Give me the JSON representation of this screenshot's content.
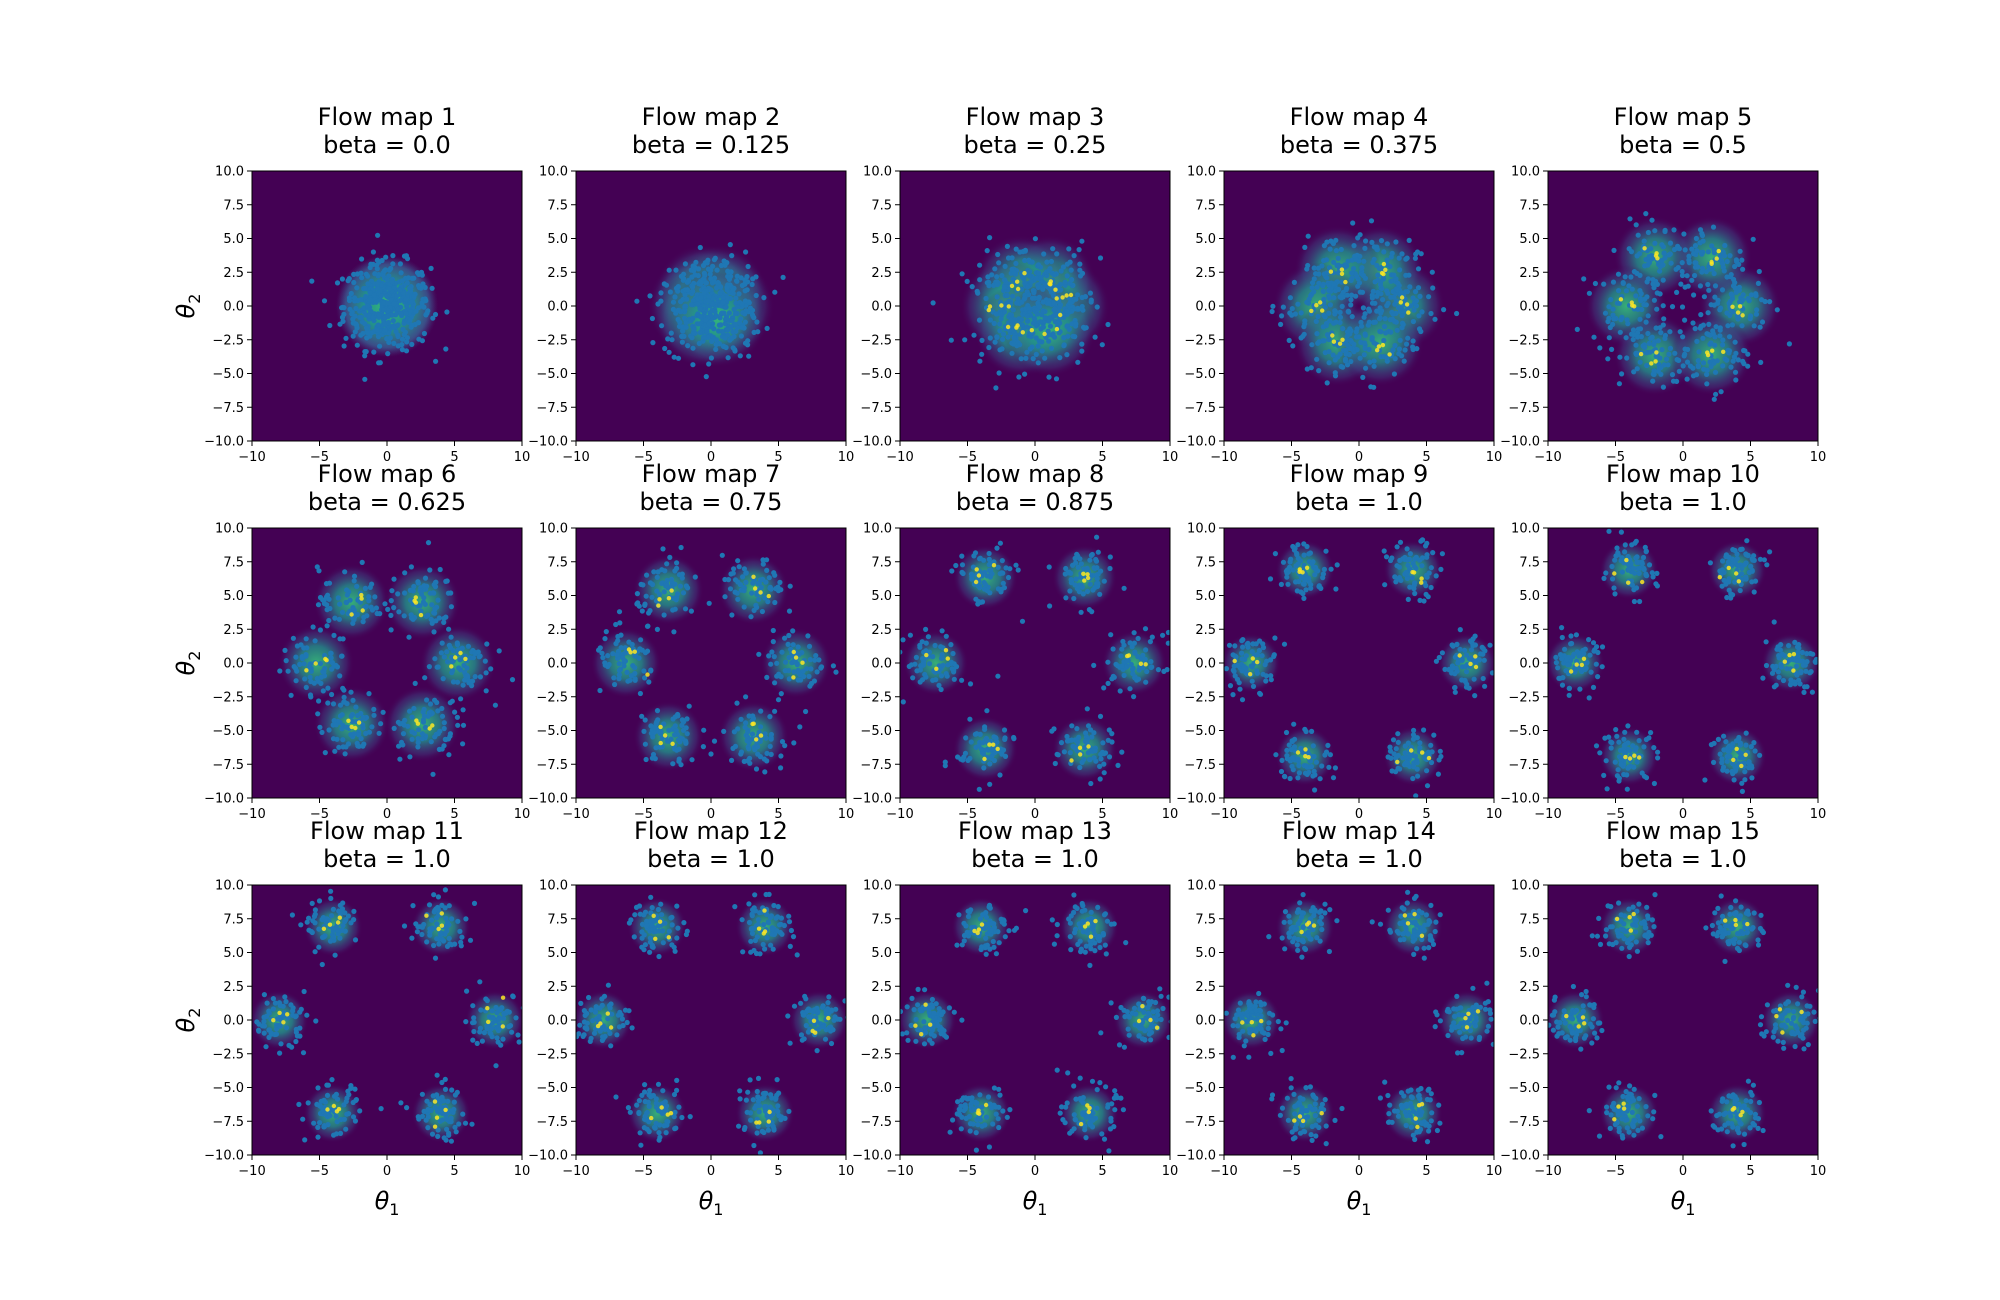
{
  "colors": {
    "background": "#440154",
    "density_mid": "#21918c",
    "density_high": "#fde725",
    "points": "#1f77b4"
  },
  "chart_data": {
    "type": "scatter",
    "layout_grid": {
      "rows": 3,
      "cols": 5
    },
    "xlim": [
      -10,
      10
    ],
    "ylim": [
      -10,
      10
    ],
    "x_ticks": [
      "−10",
      "−5",
      "0",
      "5",
      "10"
    ],
    "y_ticks": [
      "10.0",
      "7.5",
      "5.0",
      "2.5",
      "0.0",
      "−2.5",
      "−5.0",
      "−7.5",
      "−10.0"
    ],
    "xlabel": "θ",
    "xlabel_sub": "1",
    "ylabel": "θ",
    "ylabel_sub": "2",
    "panels": [
      {
        "title": "Flow map 1",
        "subtitle": "beta = 0.0",
        "beta": 0.0
      },
      {
        "title": "Flow map 2",
        "subtitle": "beta = 0.125",
        "beta": 0.125
      },
      {
        "title": "Flow map 3",
        "subtitle": "beta = 0.25",
        "beta": 0.25
      },
      {
        "title": "Flow map 4",
        "subtitle": "beta = 0.375",
        "beta": 0.375
      },
      {
        "title": "Flow map 5",
        "subtitle": "beta = 0.5",
        "beta": 0.5
      },
      {
        "title": "Flow map 6",
        "subtitle": "beta = 0.625",
        "beta": 0.625
      },
      {
        "title": "Flow map 7",
        "subtitle": "beta = 0.75",
        "beta": 0.75
      },
      {
        "title": "Flow map 8",
        "subtitle": "beta = 0.875",
        "beta": 0.875
      },
      {
        "title": "Flow map 9",
        "subtitle": "beta = 1.0",
        "beta": 1.0
      },
      {
        "title": "Flow map 10",
        "subtitle": "beta = 1.0",
        "beta": 1.0
      },
      {
        "title": "Flow map 11",
        "subtitle": "beta = 1.0",
        "beta": 1.0
      },
      {
        "title": "Flow map 12",
        "subtitle": "beta = 1.0",
        "beta": 1.0
      },
      {
        "title": "Flow map 13",
        "subtitle": "beta = 1.0",
        "beta": 1.0
      },
      {
        "title": "Flow map 14",
        "subtitle": "beta = 1.0",
        "beta": 1.0
      },
      {
        "title": "Flow map 15",
        "subtitle": "beta = 1.0",
        "beta": 1.0
      }
    ],
    "target_mixture": {
      "components": 6,
      "centers": [
        [
          8,
          0
        ],
        [
          4,
          6.9
        ],
        [
          -4,
          6.9
        ],
        [
          -8,
          0
        ],
        [
          -4,
          -6.9
        ],
        [
          4,
          -6.9
        ]
      ],
      "spread": 1.0
    }
  }
}
